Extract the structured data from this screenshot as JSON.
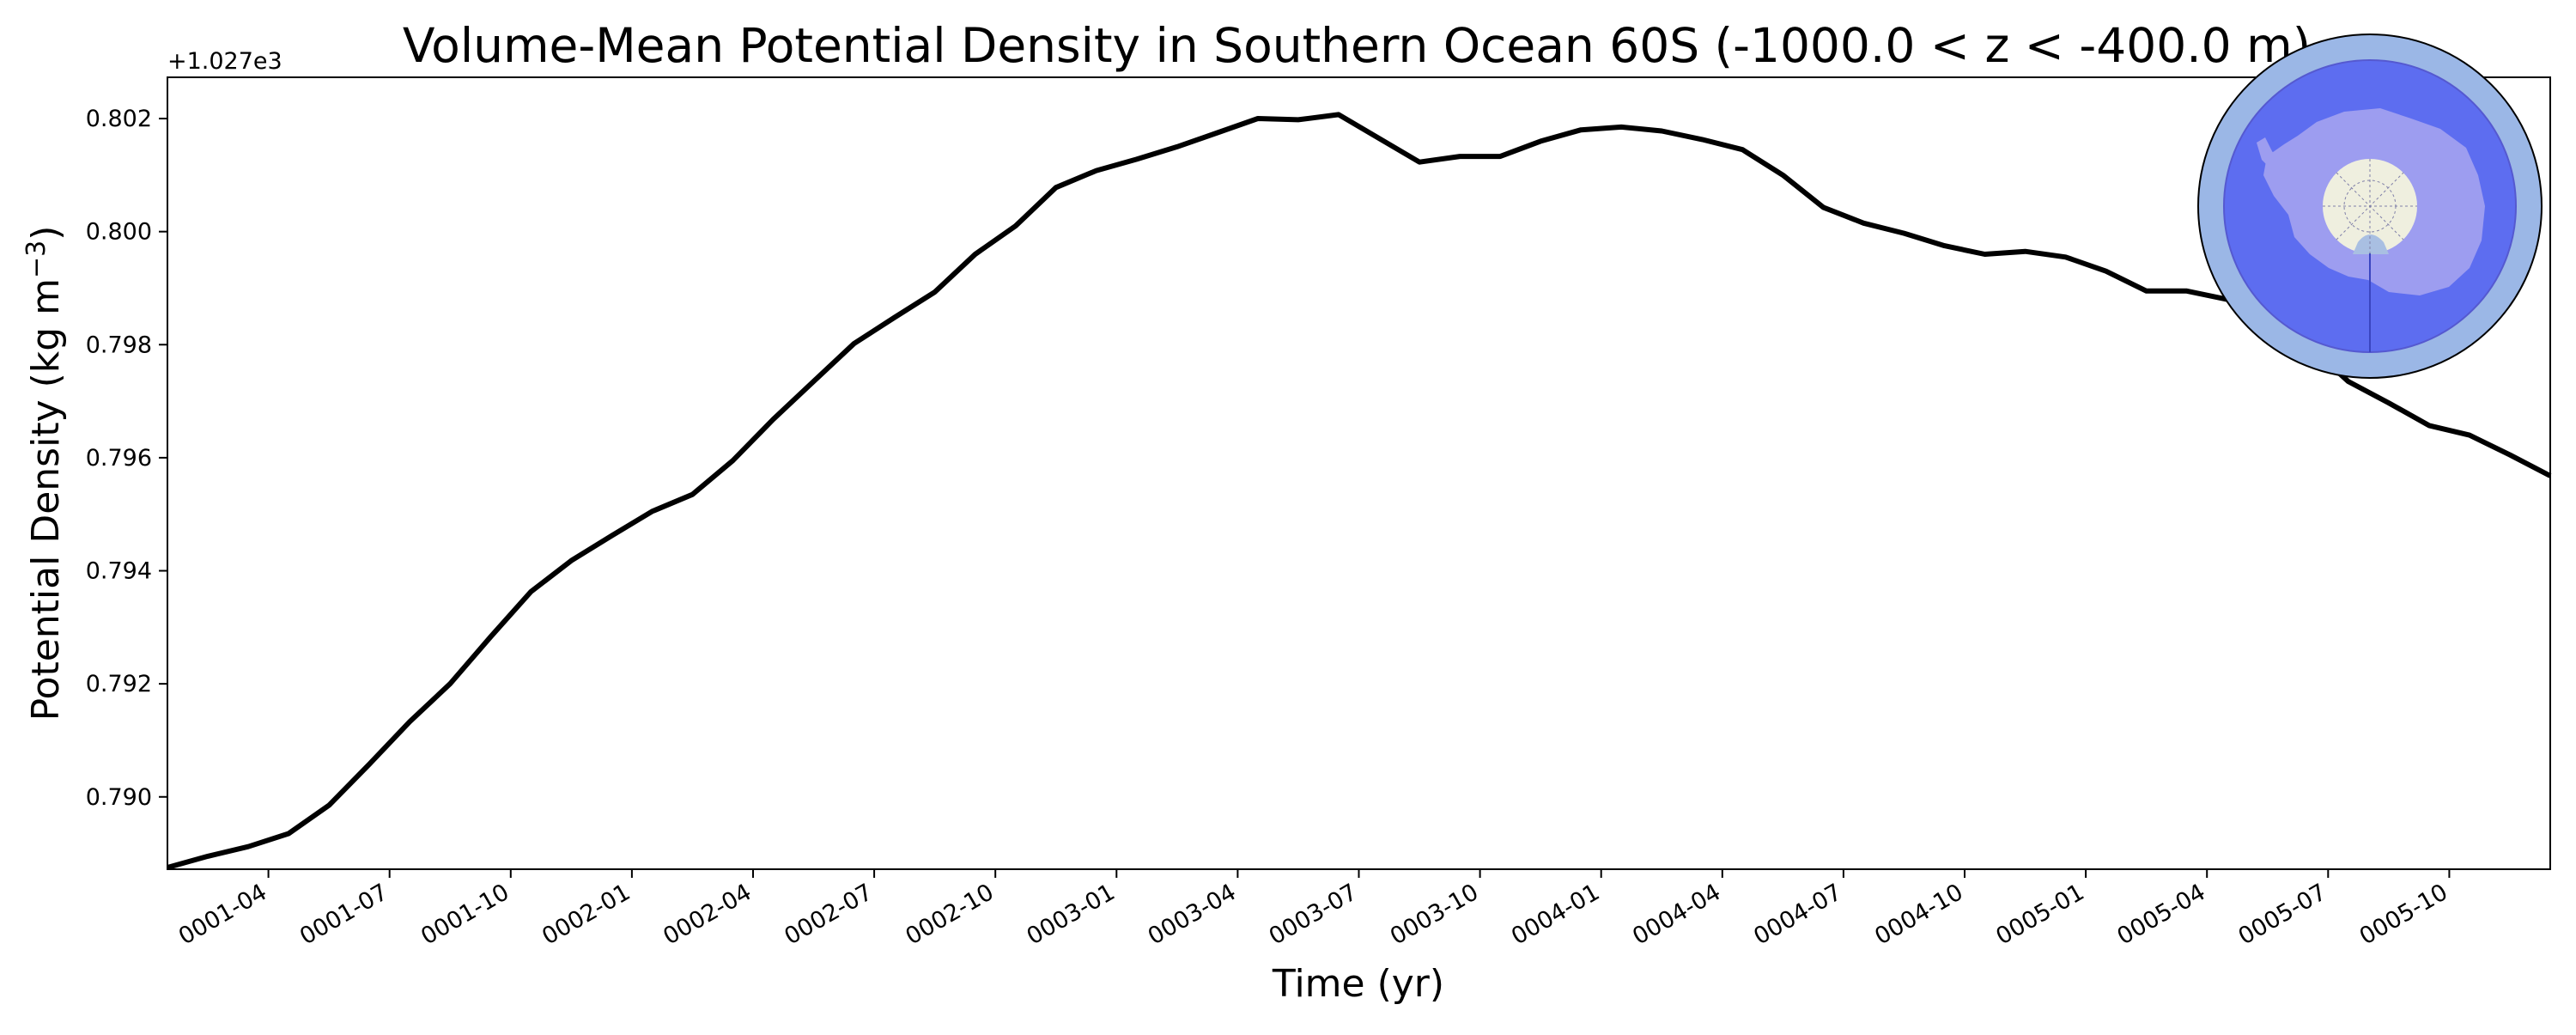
{
  "chart_data": {
    "type": "line",
    "title": "Volume-Mean Potential Density in Southern Ocean 60S (-1000.0 < z < -400.0 m)",
    "xlabel": "Time (yr)",
    "ylabel_main": "Potential Density (kg m",
    "ylabel_sup": "−3",
    "ylabel_close": ")",
    "y_offset_label": "+1.027e3",
    "y_offset": 1027,
    "xlim": [
      0.0,
      59.0
    ],
    "ylim": [
      0.78872,
      0.80273
    ],
    "yticks": [
      {
        "value": 0.79,
        "label": "0.790"
      },
      {
        "value": 0.792,
        "label": "0.792"
      },
      {
        "value": 0.794,
        "label": "0.794"
      },
      {
        "value": 0.796,
        "label": "0.796"
      },
      {
        "value": 0.798,
        "label": "0.798"
      },
      {
        "value": 0.8,
        "label": "0.800"
      },
      {
        "value": 0.802,
        "label": "0.802"
      }
    ],
    "xticks": [
      {
        "value": 2.5,
        "label": "0001-04"
      },
      {
        "value": 5.5,
        "label": "0001-07"
      },
      {
        "value": 8.5,
        "label": "0001-10"
      },
      {
        "value": 11.5,
        "label": "0002-01"
      },
      {
        "value": 14.5,
        "label": "0002-04"
      },
      {
        "value": 17.5,
        "label": "0002-07"
      },
      {
        "value": 20.5,
        "label": "0002-10"
      },
      {
        "value": 23.5,
        "label": "0003-01"
      },
      {
        "value": 26.5,
        "label": "0003-04"
      },
      {
        "value": 29.5,
        "label": "0003-07"
      },
      {
        "value": 32.5,
        "label": "0003-10"
      },
      {
        "value": 35.5,
        "label": "0004-01"
      },
      {
        "value": 38.5,
        "label": "0004-04"
      },
      {
        "value": 41.5,
        "label": "0004-07"
      },
      {
        "value": 44.5,
        "label": "0004-10"
      },
      {
        "value": 47.5,
        "label": "0005-01"
      },
      {
        "value": 50.5,
        "label": "0005-04"
      },
      {
        "value": 53.5,
        "label": "0005-07"
      },
      {
        "value": 56.5,
        "label": "0005-10"
      }
    ],
    "series": [
      {
        "name": "Southern Ocean 60S",
        "color": "#000000",
        "x": [
          0,
          1,
          2,
          3,
          4,
          5,
          6,
          7,
          8,
          9,
          10,
          11,
          12,
          13,
          14,
          15,
          16,
          17,
          18,
          19,
          20,
          21,
          22,
          23,
          24,
          25,
          26,
          27,
          28,
          29,
          30,
          31,
          32,
          33,
          34,
          35,
          36,
          37,
          38,
          39,
          40,
          41,
          42,
          43,
          44,
          45,
          46,
          47,
          48,
          49,
          50,
          51,
          52,
          53,
          54,
          55,
          56,
          57,
          58,
          59
        ],
        "values": [
          0.78875,
          0.78895,
          0.78912,
          0.78935,
          0.78985,
          0.79058,
          0.79133,
          0.792,
          0.79283,
          0.79363,
          0.79418,
          0.79462,
          0.79505,
          0.79535,
          0.79595,
          0.79668,
          0.79735,
          0.79802,
          0.79848,
          0.79893,
          0.7996,
          0.8001,
          0.80078,
          0.80108,
          0.80128,
          0.8015,
          0.80175,
          0.802,
          0.80198,
          0.80207,
          0.80165,
          0.80123,
          0.80133,
          0.80133,
          0.8016,
          0.8018,
          0.80185,
          0.80178,
          0.80163,
          0.80145,
          0.801,
          0.80043,
          0.80015,
          0.79997,
          0.79975,
          0.7996,
          0.79965,
          0.79955,
          0.7993,
          0.79895,
          0.79895,
          0.7988,
          0.79845,
          0.798,
          0.79735,
          0.79697,
          0.79657,
          0.7964,
          0.79605,
          0.79568
        ]
      }
    ]
  },
  "inset_map": {
    "label": "Antarctica region map",
    "ring_color": "#9bb7e6",
    "ocean_color": "#5d6df0",
    "land_color": "#9d9df0",
    "pole_color": "#efefdf",
    "ice_color": "#a9bfe2"
  }
}
